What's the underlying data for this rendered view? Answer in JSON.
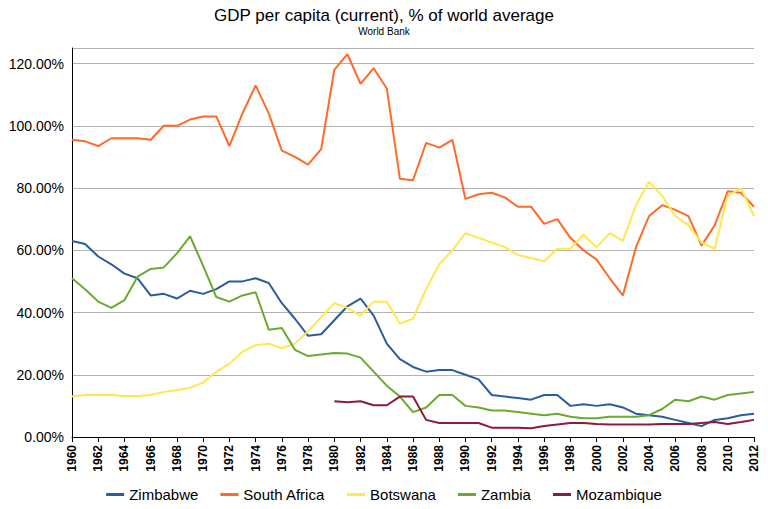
{
  "chart_data": {
    "type": "line",
    "title": "GDP per capita (current), % of world average",
    "subtitle": "World Bank",
    "x": [
      1960,
      1961,
      1962,
      1963,
      1964,
      1965,
      1966,
      1967,
      1968,
      1969,
      1970,
      1971,
      1972,
      1973,
      1974,
      1975,
      1976,
      1977,
      1978,
      1979,
      1980,
      1981,
      1982,
      1983,
      1984,
      1985,
      1986,
      1987,
      1988,
      1989,
      1990,
      1991,
      1992,
      1993,
      1994,
      1995,
      1996,
      1997,
      1998,
      1999,
      2000,
      2001,
      2002,
      2003,
      2004,
      2005,
      2006,
      2007,
      2008,
      2009,
      2010,
      2011,
      2012
    ],
    "xlim": [
      1960,
      2012
    ],
    "xticks": [
      1960,
      1962,
      1964,
      1966,
      1968,
      1970,
      1972,
      1974,
      1976,
      1978,
      1980,
      1982,
      1984,
      1986,
      1988,
      1990,
      1992,
      1994,
      1996,
      1998,
      2000,
      2002,
      2004,
      2006,
      2008,
      2010,
      2012
    ],
    "ylim": [
      0,
      125
    ],
    "yticks": [
      {
        "value": 0,
        "label": "0.00%"
      },
      {
        "value": 20,
        "label": "20.00%"
      },
      {
        "value": 40,
        "label": "40.00%"
      },
      {
        "value": 60,
        "label": "60.00%"
      },
      {
        "value": 80,
        "label": "80.00%"
      },
      {
        "value": 100,
        "label": "100.00%"
      },
      {
        "value": 120,
        "label": "120.00%"
      }
    ],
    "grid": true,
    "legend": "bottom",
    "series": [
      {
        "name": "Zimbabwe",
        "color": "#2b5c9e",
        "values": [
          63,
          62,
          58,
          55.5,
          52.5,
          51,
          45.5,
          46,
          44.5,
          47,
          46,
          47.5,
          50,
          50,
          51,
          49.5,
          43,
          38,
          32.5,
          33,
          37.5,
          42,
          44.5,
          39,
          30,
          25,
          22.5,
          21,
          21.5,
          21.5,
          20,
          18.5,
          13.5,
          13,
          12.5,
          12,
          13.5,
          13.5,
          10,
          10.5,
          10,
          10.5,
          9.5,
          7.5,
          7,
          6.5,
          5.5,
          4.5,
          3.5,
          5.5,
          6,
          7,
          7.5
        ]
      },
      {
        "name": "South Africa",
        "color": "#ff6a2b",
        "values": [
          95.5,
          95,
          93.5,
          96,
          96,
          96,
          95.5,
          100,
          100,
          102,
          103,
          103,
          93.5,
          104,
          113,
          104,
          92,
          90,
          87.5,
          92.5,
          118,
          123,
          113.5,
          118.5,
          112,
          83,
          82.5,
          94.5,
          93,
          95.5,
          76.5,
          78,
          78.5,
          77,
          74,
          74,
          68.5,
          70,
          64,
          60,
          57,
          51,
          45.5,
          61,
          71,
          74.5,
          73,
          71,
          61.5,
          68,
          79,
          78.5,
          74
        ]
      },
      {
        "name": "Botswana",
        "color": "#ffe84d",
        "values": [
          13,
          13.5,
          13.5,
          13.5,
          13.2,
          13.2,
          13.5,
          14.5,
          15,
          15.8,
          17.5,
          21,
          23.5,
          27.5,
          29.5,
          30,
          28.5,
          30,
          34,
          38.5,
          43,
          41.5,
          39,
          43.5,
          43.5,
          36.5,
          38,
          47.5,
          55.5,
          60,
          65.5,
          64,
          62.5,
          61,
          58.5,
          57.5,
          56.5,
          60.5,
          60.5,
          65,
          61,
          65.5,
          63,
          74.5,
          82,
          77.5,
          71,
          68,
          62.5,
          60.5,
          77.5,
          80,
          71
        ]
      },
      {
        "name": "Zambia",
        "color": "#6aaa2e",
        "values": [
          51,
          47.5,
          43.5,
          41.5,
          44,
          51.5,
          54,
          54.5,
          59,
          64.5,
          55,
          45,
          43.5,
          45.5,
          46.5,
          34.5,
          35,
          28,
          26,
          26.5,
          27,
          26.8,
          25.5,
          21,
          16.5,
          13,
          8,
          9.5,
          13.5,
          13.5,
          10,
          9.5,
          8.5,
          8.5,
          8,
          7.5,
          7,
          7.5,
          6.5,
          6,
          6,
          6.5,
          6.5,
          6.5,
          7,
          9,
          12,
          11.5,
          13,
          12,
          13.5,
          14,
          14.5
        ]
      },
      {
        "name": "Mozambique",
        "color": "#8b1a3c",
        "values": [
          null,
          null,
          null,
          null,
          null,
          null,
          null,
          null,
          null,
          null,
          null,
          null,
          null,
          null,
          null,
          null,
          null,
          null,
          null,
          null,
          11.5,
          11.2,
          11.5,
          10.2,
          10.2,
          13,
          13,
          5.5,
          4.5,
          4.5,
          4.5,
          4.5,
          3,
          3,
          3,
          2.8,
          3.5,
          4,
          4.5,
          4.5,
          4.2,
          4,
          4,
          4,
          4,
          4.2,
          4.2,
          4.2,
          4.5,
          4.8,
          4.2,
          4.8,
          5.5
        ]
      }
    ]
  }
}
